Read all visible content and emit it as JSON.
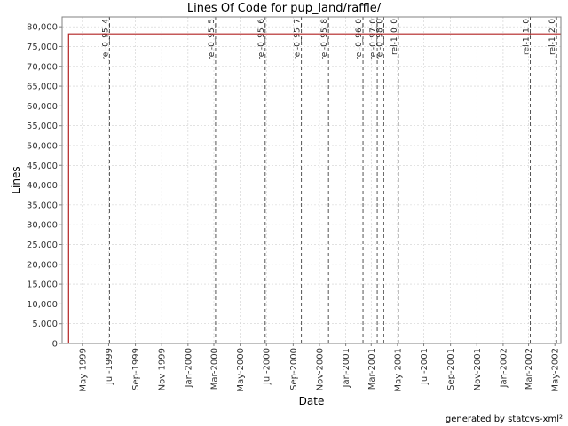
{
  "chart_data": {
    "type": "line",
    "title": "Lines Of Code for pup_land/raffle/",
    "xlabel": "Date",
    "ylabel": "Lines",
    "ylim": [
      0,
      82500
    ],
    "xlim": [
      "1999-03-15",
      "2002-05-15"
    ],
    "grid": true,
    "y_ticks": [
      0,
      5000,
      10000,
      15000,
      20000,
      25000,
      30000,
      35000,
      40000,
      45000,
      50000,
      55000,
      60000,
      65000,
      70000,
      75000,
      80000
    ],
    "y_tick_labels": [
      "0",
      "5,000",
      "10,000",
      "15,000",
      "20,000",
      "25,000",
      "30,000",
      "35,000",
      "40,000",
      "45,000",
      "50,000",
      "55,000",
      "60,000",
      "65,000",
      "70,000",
      "75,000",
      "80,000"
    ],
    "x_ticks": [
      "1999-05-01",
      "1999-07-01",
      "1999-09-01",
      "1999-11-01",
      "2000-01-01",
      "2000-03-01",
      "2000-05-01",
      "2000-07-01",
      "2000-09-01",
      "2000-11-01",
      "2001-01-01",
      "2001-03-01",
      "2001-05-01",
      "2001-07-01",
      "2001-09-01",
      "2001-11-01",
      "2002-01-01",
      "2002-03-01",
      "2002-05-01"
    ],
    "x_tick_labels": [
      "May-1999",
      "Jul-1999",
      "Sep-1999",
      "Nov-1999",
      "Jan-2000",
      "Mar-2000",
      "May-2000",
      "Jul-2000",
      "Sep-2000",
      "Nov-2000",
      "Jan-2001",
      "Mar-2001",
      "May-2001",
      "Jul-2001",
      "Sep-2001",
      "Nov-2001",
      "Jan-2002",
      "Mar-2002",
      "May-2002"
    ],
    "series": [
      {
        "color": "#b22222",
        "points": [
          {
            "x": "1999-03-30",
            "y": 0
          },
          {
            "x": "1999-03-30",
            "y": 78200
          },
          {
            "x": "2002-05-15",
            "y": 78200
          }
        ]
      }
    ],
    "tags": [
      {
        "label": "rel-0_95_4",
        "date": "1999-07-03"
      },
      {
        "label": "rel-0_95_5",
        "date": "2000-03-05"
      },
      {
        "label": "rel-0_95_6",
        "date": "2000-06-28"
      },
      {
        "label": "rel-0_95_7",
        "date": "2000-09-20"
      },
      {
        "label": "rel-0_95_8",
        "date": "2000-11-22"
      },
      {
        "label": "rel-0_96_0",
        "date": "2001-02-10"
      },
      {
        "label": "rel-0_97_0",
        "date": "2001-03-15"
      },
      {
        "label": "rel-0_98_0",
        "date": "2001-03-30"
      },
      {
        "label": "rel-1_0_0",
        "date": "2001-05-03"
      },
      {
        "label": "rel-1_1_0",
        "date": "2002-03-05"
      },
      {
        "label": "rel-1_2_0",
        "date": "2002-05-05"
      }
    ],
    "colors": {
      "line": "#b22222",
      "tag_line": "#555555",
      "grid": "#d0d0d0"
    }
  },
  "footer": "generated by statcvs-xml²"
}
